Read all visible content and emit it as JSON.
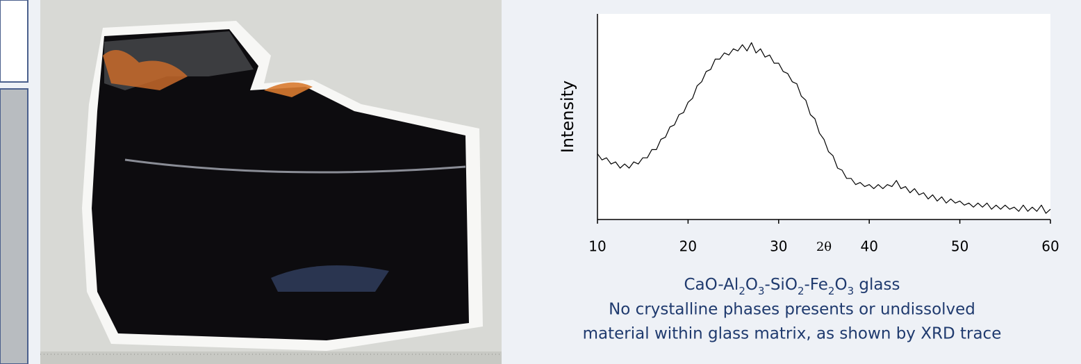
{
  "chart_data": {
    "type": "line",
    "y_label": "Intensity",
    "x_label": "2θ",
    "xlim": [
      10,
      60
    ],
    "xticks": [
      10,
      20,
      30,
      40,
      50,
      60
    ],
    "ylim": [
      0,
      10
    ],
    "color": "#000000",
    "x": [
      10,
      10.5,
      11,
      11.5,
      12,
      12.5,
      13,
      13.5,
      14,
      14.5,
      15,
      15.5,
      16,
      16.5,
      17,
      17.5,
      18,
      18.5,
      19,
      19.5,
      20,
      20.5,
      21,
      21.5,
      22,
      22.5,
      23,
      23.5,
      24,
      24.5,
      25,
      25.5,
      26,
      26.5,
      27,
      27.5,
      28,
      28.5,
      29,
      29.5,
      30,
      30.5,
      31,
      31.5,
      32,
      32.5,
      33,
      33.5,
      34,
      34.5,
      35,
      35.5,
      36,
      36.5,
      37,
      37.5,
      38,
      38.5,
      39,
      39.5,
      40,
      40.5,
      41,
      41.5,
      42,
      42.5,
      43,
      43.5,
      44,
      44.5,
      45,
      45.5,
      46,
      46.5,
      47,
      47.5,
      48,
      48.5,
      49,
      49.5,
      50,
      50.5,
      51,
      51.5,
      52,
      52.5,
      53,
      53.5,
      54,
      54.5,
      55,
      55.5,
      56,
      56.5,
      57,
      57.5,
      58,
      58.5,
      59,
      59.5,
      60
    ],
    "values": [
      3.2,
      2.9,
      3.0,
      2.7,
      2.8,
      2.5,
      2.7,
      2.5,
      2.8,
      2.7,
      3.0,
      3.0,
      3.4,
      3.4,
      3.9,
      4.0,
      4.5,
      4.6,
      5.1,
      5.2,
      5.7,
      5.9,
      6.5,
      6.7,
      7.2,
      7.3,
      7.8,
      7.8,
      8.1,
      8.0,
      8.3,
      8.2,
      8.5,
      8.2,
      8.6,
      8.1,
      8.3,
      7.9,
      8.0,
      7.6,
      7.6,
      7.2,
      7.1,
      6.7,
      6.6,
      6.0,
      5.8,
      5.1,
      4.9,
      4.2,
      3.9,
      3.3,
      3.1,
      2.5,
      2.4,
      2.0,
      2.0,
      1.7,
      1.8,
      1.6,
      1.7,
      1.5,
      1.7,
      1.5,
      1.7,
      1.6,
      1.9,
      1.5,
      1.6,
      1.3,
      1.5,
      1.2,
      1.3,
      1.0,
      1.2,
      0.9,
      1.1,
      0.8,
      1.0,
      0.8,
      0.9,
      0.7,
      0.8,
      0.6,
      0.8,
      0.6,
      0.8,
      0.5,
      0.7,
      0.5,
      0.7,
      0.5,
      0.6,
      0.4,
      0.7,
      0.4,
      0.6,
      0.4,
      0.7,
      0.3,
      0.5
    ],
    "caption": [
      "CaO-Al",
      "2",
      "O",
      "3",
      "-SiO",
      "2",
      "-Fe",
      "2",
      "O",
      "3",
      " glass"
    ],
    "notes": [
      "No crystalline phases presents or undissolved",
      "material within glass matrix, as shown by XRD trace"
    ]
  }
}
